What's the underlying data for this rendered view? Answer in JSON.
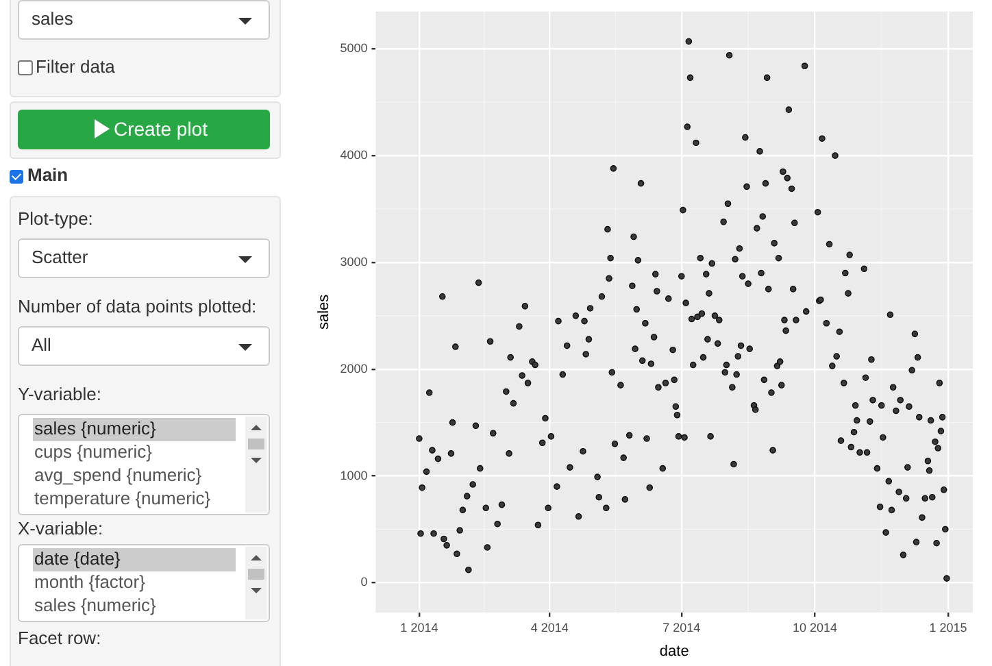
{
  "chart_data": [
    {
      "type": "other",
      "annotations": [
        "sales",
        "Filter data",
        "Create plot",
        "Main",
        "Plot-type:",
        "Scatter",
        "Number of data points plotted:",
        "All",
        "Y-variable:",
        "sales {numeric}",
        "cups {numeric}",
        "avg_spend {numeric}",
        "temperature {numeric}",
        "X-variable:",
        "date {date}",
        "month {factor}",
        "sales {numeric}",
        "Facet row:"
      ]
    },
    {
      "type": "scatter",
      "xlabel": "date",
      "ylabel": "sales",
      "color": "#3a3a3a",
      "marker": "circle",
      "grid": true,
      "xlim": [
        "2013-12-02",
        "2015-01-18"
      ],
      "ylim": [
        -280,
        5350
      ],
      "xticks": [
        {
          "value": "2014-01-01",
          "label": "1 2014"
        },
        {
          "value": "2014-04-01",
          "label": "4 2014"
        },
        {
          "value": "2014-07-01",
          "label": "7 2014"
        },
        {
          "value": "2014-10-01",
          "label": "10 2014"
        },
        {
          "value": "2015-01-01",
          "label": "1 2015"
        }
      ],
      "yticks": [
        0,
        1000,
        2000,
        3000,
        4000,
        5000
      ],
      "x": [
        "2014-01-01",
        "2014-01-02",
        "2014-01-03",
        "2014-01-06",
        "2014-01-08",
        "2014-01-10",
        "2014-01-11",
        "2014-01-14",
        "2014-01-17",
        "2014-01-18",
        "2014-01-20",
        "2014-01-23",
        "2014-01-24",
        "2014-01-26",
        "2014-01-27",
        "2014-01-29",
        "2014-01-31",
        "2014-02-03",
        "2014-02-04",
        "2014-02-07",
        "2014-02-09",
        "2014-02-11",
        "2014-02-12",
        "2014-02-16",
        "2014-02-17",
        "2014-02-19",
        "2014-02-21",
        "2014-02-24",
        "2014-02-27",
        "2014-03-02",
        "2014-03-04",
        "2014-03-05",
        "2014-03-07",
        "2014-03-11",
        "2014-03-13",
        "2014-03-15",
        "2014-03-17",
        "2014-03-20",
        "2014-03-22",
        "2014-03-24",
        "2014-03-27",
        "2014-03-29",
        "2014-03-31",
        "2014-04-02",
        "2014-04-06",
        "2014-04-07",
        "2014-04-10",
        "2014-04-13",
        "2014-04-15",
        "2014-04-19",
        "2014-04-21",
        "2014-04-24",
        "2014-04-25",
        "2014-04-26",
        "2014-04-28",
        "2014-04-29",
        "2014-05-04",
        "2014-05-05",
        "2014-05-07",
        "2014-05-10",
        "2014-05-11",
        "2014-05-12",
        "2014-05-13",
        "2014-05-14",
        "2014-05-15",
        "2014-05-16",
        "2014-05-20",
        "2014-05-22",
        "2014-05-23",
        "2014-05-26",
        "2014-05-28",
        "2014-05-29",
        "2014-05-30",
        "2014-05-31",
        "2014-06-01",
        "2014-06-03",
        "2014-06-04",
        "2014-06-06",
        "2014-06-07",
        "2014-06-09",
        "2014-06-10",
        "2014-06-12",
        "2014-06-13",
        "2014-06-14",
        "2014-06-15",
        "2014-06-18",
        "2014-06-20",
        "2014-06-22",
        "2014-06-25",
        "2014-06-26",
        "2014-06-27",
        "2014-06-28",
        "2014-06-29",
        "2014-07-01",
        "2014-07-02",
        "2014-07-03",
        "2014-07-04",
        "2014-07-05",
        "2014-07-06",
        "2014-07-07",
        "2014-07-08",
        "2014-07-09",
        "2014-07-11",
        "2014-07-12",
        "2014-07-14",
        "2014-07-15",
        "2014-07-16",
        "2014-07-18",
        "2014-07-19",
        "2014-07-20",
        "2014-07-21",
        "2014-07-22",
        "2014-07-24",
        "2014-07-26",
        "2014-07-27",
        "2014-07-30",
        "2014-07-31",
        "2014-08-01",
        "2014-08-02",
        "2014-08-03",
        "2014-08-05",
        "2014-08-06",
        "2014-08-07",
        "2014-08-08",
        "2014-08-09",
        "2014-08-10",
        "2014-08-11",
        "2014-08-12",
        "2014-08-14",
        "2014-08-15",
        "2014-08-16",
        "2014-08-17",
        "2014-08-20",
        "2014-08-21",
        "2014-08-22",
        "2014-08-24",
        "2014-08-25",
        "2014-08-26",
        "2014-08-27",
        "2014-08-28",
        "2014-08-29",
        "2014-08-30",
        "2014-09-01",
        "2014-09-02",
        "2014-09-03",
        "2014-09-05",
        "2014-09-06",
        "2014-09-07",
        "2014-09-08",
        "2014-09-09",
        "2014-09-10",
        "2014-09-11",
        "2014-09-12",
        "2014-09-13",
        "2014-09-15",
        "2014-09-16",
        "2014-09-17",
        "2014-09-18",
        "2014-09-24",
        "2014-09-25",
        "2014-10-03",
        "2014-10-04",
        "2014-10-05",
        "2014-10-06",
        "2014-10-09",
        "2014-10-11",
        "2014-10-13",
        "2014-10-15",
        "2014-10-16",
        "2014-10-18",
        "2014-10-19",
        "2014-10-21",
        "2014-10-22",
        "2014-10-24",
        "2014-10-25",
        "2014-10-26",
        "2014-10-28",
        "2014-10-29",
        "2014-10-30",
        "2014-11-01",
        "2014-11-04",
        "2014-11-05",
        "2014-11-06",
        "2014-11-08",
        "2014-11-09",
        "2014-11-10",
        "2014-11-13",
        "2014-11-15",
        "2014-11-16",
        "2014-11-17",
        "2014-11-19",
        "2014-11-21",
        "2014-11-22",
        "2014-11-23",
        "2014-11-24",
        "2014-11-26",
        "2014-11-28",
        "2014-11-29",
        "2014-12-01",
        "2014-12-03",
        "2014-12-04",
        "2014-12-05",
        "2014-12-07",
        "2014-12-09",
        "2014-12-10",
        "2014-12-11",
        "2014-12-12",
        "2014-12-14",
        "2014-12-16",
        "2014-12-18",
        "2014-12-19",
        "2014-12-20",
        "2014-12-21",
        "2014-12-23",
        "2014-12-24",
        "2014-12-25",
        "2014-12-26",
        "2014-12-27",
        "2014-12-28",
        "2014-12-29",
        "2014-12-30",
        "2014-12-31"
      ],
      "values": [
        1350,
        460,
        890,
        1040,
        1780,
        1240,
        460,
        1160,
        2680,
        410,
        350,
        1210,
        1500,
        2210,
        270,
        490,
        680,
        810,
        120,
        920,
        1470,
        2810,
        1070,
        700,
        330,
        2260,
        1400,
        550,
        730,
        1790,
        1210,
        2110,
        1680,
        2400,
        1940,
        2590,
        1870,
        2070,
        2040,
        540,
        1310,
        1540,
        700,
        1370,
        900,
        2450,
        1950,
        2220,
        1080,
        2500,
        620,
        1230,
        2450,
        2140,
        2280,
        2570,
        990,
        800,
        2680,
        700,
        3310,
        2850,
        3040,
        1970,
        3880,
        1300,
        1850,
        1170,
        780,
        1380,
        2780,
        3240,
        2190,
        2560,
        3020,
        3740,
        2080,
        2430,
        1350,
        890,
        2050,
        2300,
        2890,
        2730,
        1830,
        1070,
        1870,
        2660,
        2180,
        1900,
        1650,
        1570,
        1370,
        2870,
        3490,
        1360,
        2620,
        4270,
        5070,
        4730,
        2470,
        2040,
        4120,
        2490,
        3040,
        2520,
        2110,
        2890,
        2280,
        2710,
        1370,
        2990,
        2500,
        2240,
        2460,
        3380,
        1970,
        2040,
        3550,
        4940,
        1830,
        1110,
        3030,
        1950,
        2120,
        3130,
        2220,
        2870,
        4170,
        3710,
        2800,
        2190,
        1660,
        1620,
        3320,
        4040,
        2900,
        3430,
        1900,
        3740,
        4730,
        2750,
        1780,
        1240,
        3180,
        2030,
        3040,
        2070,
        1850,
        3850,
        2460,
        2360,
        3790,
        4430,
        3690,
        2750,
        3370,
        2460,
        4840,
        2540,
        3470,
        2640,
        2650,
        4160,
        2430,
        3170,
        2030,
        4000,
        2120,
        2350,
        1330,
        1870,
        2900,
        2710,
        3070,
        1270,
        1410,
        1660,
        1520,
        1220,
        2940,
        1920,
        1220,
        1510,
        2090,
        1710,
        1070,
        710,
        1660,
        1360,
        470,
        950,
        2510,
        680,
        1830,
        1610,
        850,
        1710,
        260,
        790,
        1080,
        1650,
        1990,
        2330,
        380,
        2110,
        1550,
        610,
        790,
        1140,
        1050,
        1520,
        800,
        1320,
        370,
        1260,
        1870,
        1420,
        1550,
        870,
        500,
        40
      ]
    }
  ]
}
